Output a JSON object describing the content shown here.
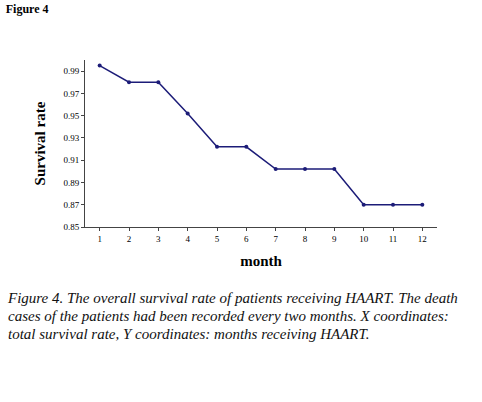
{
  "chart_data": {
    "type": "line",
    "title": "Figure 4",
    "x_label": "month",
    "y_label": "Survival rate",
    "x": [
      1,
      2,
      3,
      4,
      5,
      6,
      7,
      8,
      9,
      10,
      11,
      12
    ],
    "values": [
      0.995,
      0.98,
      0.98,
      0.952,
      0.922,
      0.922,
      0.902,
      0.902,
      0.902,
      0.87,
      0.87,
      0.87
    ],
    "color": "#1c1c78",
    "marker": "circle",
    "line_style": "solid",
    "xlim": [
      0.5,
      12.5
    ],
    "xticks": [
      1,
      2,
      3,
      4,
      5,
      6,
      7,
      8,
      9,
      10,
      11,
      12
    ],
    "ylim": [
      0.85,
      1.0
    ],
    "yticks": [
      0.85,
      0.87,
      0.89,
      0.91,
      0.93,
      0.95,
      0.97,
      0.99
    ],
    "grid": false,
    "caption_label": "Figure 4.",
    "caption": "The overall survival rate of patients receiving HAART. The death cases of the patients had been recorded every two months. X coordinates: total survival rate, Y coordinates: months receiving HAART."
  }
}
